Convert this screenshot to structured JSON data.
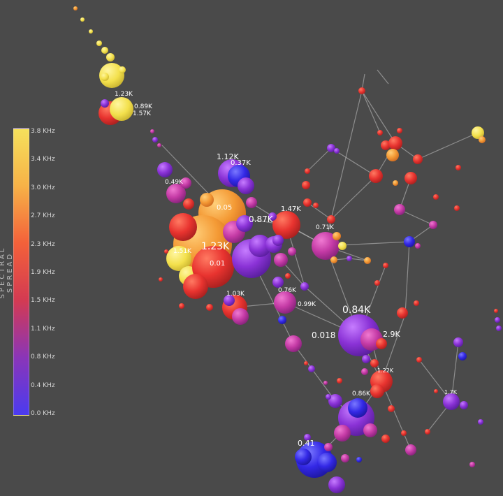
{
  "legend": {
    "title": "SPECTRAL SPREAD",
    "ticks": [
      "3.8 KHz",
      "3.4 KHz",
      "3.0 KHz",
      "2.7 KHz",
      "2.3 KHz",
      "1.9 KHz",
      "1.5 KHz",
      "1.1 KHz",
      "0.8 KHz",
      "0.4 KHz",
      "0.0 KHz"
    ],
    "gradient": [
      "#f5e15c",
      "#f7b247",
      "#f3613a",
      "#d33a52",
      "#8a35b8",
      "#4b3bf0"
    ]
  },
  "colors": {
    "background": "#4a4a4a",
    "yellow": "#f3e04c",
    "orange": "#f49a35",
    "red": "#e8332f",
    "magenta": "#c43aa5",
    "purple": "#8a32d6",
    "blue": "#3328e6"
  },
  "labels": [
    "1.12K",
    "0.37K",
    "0.49K",
    "1.47K",
    "0.71K",
    "0.87K",
    "1.23K",
    "1.51K",
    "1.03K",
    "0.76K",
    "0.99K",
    "0.84K",
    "0.018",
    "1.22K",
    "0.86K",
    "0.41",
    "1.23K",
    "0.89K",
    "1.57K",
    "2.9K",
    "1.7K",
    "0.05",
    "0.01"
  ]
}
